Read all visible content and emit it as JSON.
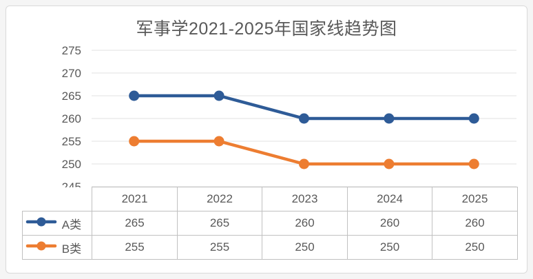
{
  "chart_data": {
    "type": "line",
    "title": "军事学2021-2025年国家线趋势图",
    "categories": [
      "2021",
      "2022",
      "2023",
      "2024",
      "2025"
    ],
    "series": [
      {
        "name": "A类",
        "values": [
          265,
          265,
          260,
          260,
          260
        ],
        "color": "#2e5b97"
      },
      {
        "name": "B类",
        "values": [
          255,
          255,
          250,
          250,
          250
        ],
        "color": "#ed7d31"
      }
    ],
    "xlabel": "",
    "ylabel": "",
    "ylim": [
      245,
      275
    ],
    "yticks": [
      275,
      270,
      265,
      260,
      255,
      250,
      245
    ],
    "grid": true,
    "legend_position": "data-table-left",
    "colors": {
      "text": "#595959",
      "grid": "#e2e2e2",
      "table_border": "#c0c0c0",
      "card_border": "#d9d9d9",
      "background": "#ffffff"
    }
  }
}
